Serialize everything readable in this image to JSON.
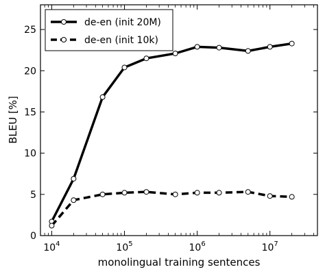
{
  "chart_data": {
    "type": "line",
    "xlabel": "monolingual training sentences",
    "ylabel": "BLEU [%]",
    "xscale": "log",
    "xlim": [
      7000,
      45000000
    ],
    "ylim": [
      0,
      28
    ],
    "yticks": [
      0,
      5,
      10,
      15,
      20,
      25
    ],
    "xticks": [
      {
        "value": 10000,
        "base": "10",
        "exp": "4"
      },
      {
        "value": 100000,
        "base": "10",
        "exp": "5"
      },
      {
        "value": 1000000,
        "base": "10",
        "exp": "6"
      },
      {
        "value": 10000000,
        "base": "10",
        "exp": "7"
      }
    ],
    "grid": false,
    "legend_position": "top-left",
    "series": [
      {
        "name": "de-en (init 20M)",
        "style": "solid",
        "color": "#000000",
        "x": [
          10000,
          20000,
          50000,
          100000,
          200000,
          500000,
          1000000,
          2000000,
          5000000,
          10000000,
          20000000
        ],
        "y": [
          1.7,
          6.9,
          16.8,
          20.4,
          21.5,
          22.1,
          22.9,
          22.8,
          22.4,
          22.9,
          23.3
        ]
      },
      {
        "name": "de-en (init 10k)",
        "style": "dashed",
        "color": "#000000",
        "x": [
          10000,
          20000,
          50000,
          100000,
          200000,
          500000,
          1000000,
          2000000,
          5000000,
          10000000,
          20000000
        ],
        "y": [
          1.2,
          4.3,
          5.0,
          5.2,
          5.3,
          5.0,
          5.2,
          5.2,
          5.3,
          4.8,
          4.7
        ]
      }
    ]
  }
}
